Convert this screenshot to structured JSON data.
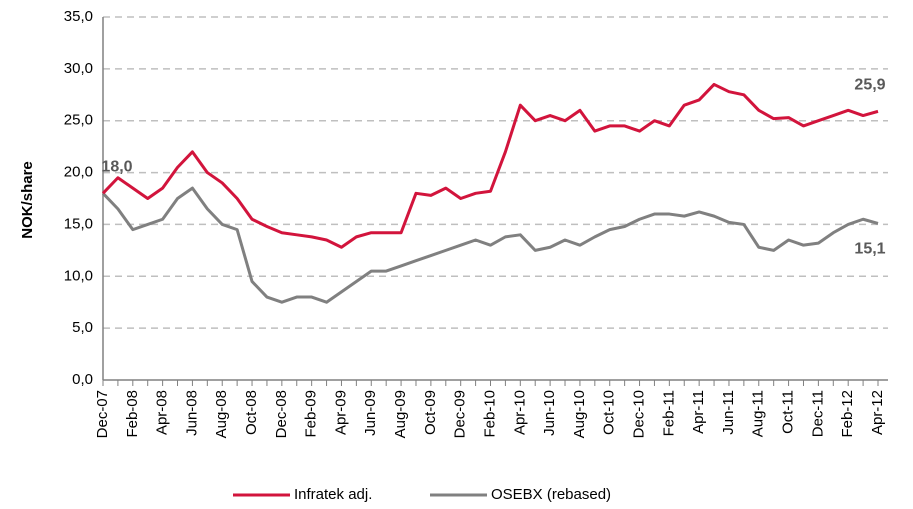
{
  "chart_data": {
    "type": "line",
    "y_label": "NOK/share",
    "categories": [
      "Dec-07",
      null,
      "Feb-08",
      null,
      "Apr-08",
      null,
      "Jun-08",
      null,
      "Aug-08",
      null,
      "Oct-08",
      null,
      "Dec-08",
      null,
      "Feb-09",
      null,
      "Apr-09",
      null,
      "Jun-09",
      null,
      "Aug-09",
      null,
      "Oct-09",
      null,
      "Dec-09",
      null,
      "Feb-10",
      null,
      "Apr-10",
      null,
      "Jun-10",
      null,
      "Aug-10",
      null,
      "Oct-10",
      null,
      "Dec-10",
      null,
      "Feb-11",
      null,
      "Apr-11",
      null,
      "Jun-11",
      null,
      "Aug-11",
      null,
      "Oct-11",
      null,
      "Dec-11",
      null,
      "Feb-12",
      null,
      "Apr-12"
    ],
    "series": [
      {
        "name": "Infratek adj.",
        "color": "#d2143c",
        "values": [
          18.0,
          19.5,
          18.5,
          17.5,
          18.5,
          20.5,
          22,
          20,
          19,
          17.5,
          15.5,
          14.8,
          14.2,
          14,
          13.8,
          13.5,
          12.8,
          13.8,
          14.2,
          14.2,
          14.2,
          18,
          17.8,
          18.5,
          17.5,
          18,
          18.2,
          22,
          26.5,
          25,
          25.5,
          25,
          26,
          24,
          24.5,
          24.5,
          24,
          25,
          24.5,
          26.5,
          27,
          28.5,
          27.8,
          27.5,
          26,
          25.2,
          25.3,
          24.5,
          25,
          25.5,
          26,
          25.5,
          25.9
        ],
        "value_labels": [
          "18,0",
          null,
          null,
          null,
          null,
          null,
          null,
          null,
          null,
          null,
          null,
          null,
          null,
          null,
          null,
          null,
          null,
          null,
          null,
          null,
          null,
          null,
          null,
          null,
          null,
          null,
          null,
          null,
          null,
          null,
          null,
          null,
          null,
          null,
          null,
          null,
          null,
          null,
          null,
          null,
          null,
          null,
          null,
          null,
          null,
          null,
          null,
          null,
          null,
          null,
          null,
          null,
          "25,9"
        ]
      },
      {
        "name": "OSEBX (rebased)",
        "color": "#808080",
        "values": [
          18,
          16.5,
          14.5,
          15,
          15.5,
          17.5,
          18.5,
          16.5,
          15,
          14.5,
          9.5,
          8,
          7.5,
          8,
          8,
          7.5,
          8.5,
          9.5,
          10.5,
          10.5,
          11,
          11.5,
          12,
          12.5,
          13,
          13.5,
          13,
          13.8,
          14,
          12.5,
          12.8,
          13.5,
          13,
          13.8,
          14.5,
          14.8,
          15.5,
          16,
          16,
          15.8,
          16.2,
          15.8,
          15.2,
          15,
          12.8,
          12.5,
          13.5,
          13,
          13.2,
          14.2,
          15,
          15.5,
          15.1
        ],
        "value_labels": [
          null,
          null,
          null,
          null,
          null,
          null,
          null,
          null,
          null,
          null,
          null,
          null,
          null,
          null,
          null,
          null,
          null,
          null,
          null,
          null,
          null,
          null,
          null,
          null,
          null,
          null,
          null,
          null,
          null,
          null,
          null,
          null,
          null,
          null,
          null,
          null,
          null,
          null,
          null,
          null,
          null,
          null,
          null,
          null,
          null,
          null,
          null,
          null,
          null,
          null,
          null,
          null,
          "15,1"
        ]
      }
    ],
    "ylim": [
      0,
      35
    ],
    "yticks": [
      {
        "value": 0,
        "label": "0,0"
      },
      {
        "value": 5,
        "label": "5,0"
      },
      {
        "value": 10,
        "label": "10,0"
      },
      {
        "value": 15,
        "label": "15,0"
      },
      {
        "value": 20,
        "label": "20,0"
      },
      {
        "value": 25,
        "label": "25,0"
      },
      {
        "value": 30,
        "label": "30,0"
      },
      {
        "value": 35,
        "label": "35,0"
      }
    ],
    "grid": true,
    "legend": "bottom"
  }
}
